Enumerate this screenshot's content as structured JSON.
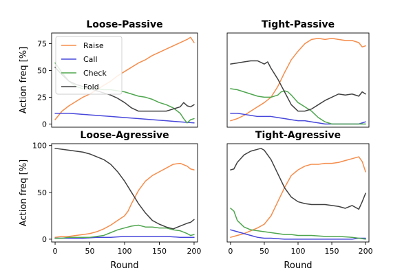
{
  "chart_data": [
    {
      "type": "line",
      "title": "Loose-Passive",
      "xlabel": "",
      "ylabel": "Action freq [%]",
      "xlim": [
        -5,
        205
      ],
      "ylim": [
        -3,
        85
      ],
      "xticks": [],
      "yticks": [
        0,
        25,
        50,
        75
      ],
      "grid": false,
      "legend": {
        "position": "top-left",
        "entries": [
          "Raise",
          "Call",
          "Check",
          "Fold"
        ]
      },
      "series": [
        {
          "name": "Raise",
          "color": "#F58D4C",
          "x": [
            0,
            10,
            20,
            30,
            40,
            50,
            60,
            70,
            80,
            90,
            100,
            110,
            120,
            130,
            140,
            150,
            160,
            170,
            180,
            190,
            195,
            200
          ],
          "y": [
            4,
            12,
            17,
            21,
            25,
            28,
            32,
            36,
            40,
            45,
            49,
            53,
            57,
            60,
            64,
            67,
            70,
            73,
            76,
            79,
            81,
            76
          ]
        },
        {
          "name": "Call",
          "color": "#4747DB",
          "x": [
            0,
            20,
            40,
            60,
            80,
            100,
            120,
            140,
            160,
            180,
            200
          ],
          "y": [
            10,
            10,
            9,
            8,
            7,
            6,
            5,
            4,
            3,
            2,
            1
          ]
        },
        {
          "name": "Check",
          "color": "#4FA64F",
          "x": [
            0,
            10,
            20,
            30,
            40,
            50,
            60,
            70,
            80,
            90,
            100,
            110,
            120,
            130,
            140,
            150,
            160,
            170,
            180,
            185,
            190,
            195,
            200
          ],
          "y": [
            57,
            48,
            40,
            35,
            33,
            33,
            33,
            32,
            32,
            31,
            30,
            28,
            26,
            25,
            23,
            20,
            18,
            15,
            10,
            5,
            1,
            4,
            5
          ]
        },
        {
          "name": "Fold",
          "color": "#404040",
          "x": [
            0,
            10,
            20,
            30,
            40,
            50,
            60,
            70,
            80,
            90,
            100,
            110,
            120,
            130,
            140,
            150,
            160,
            170,
            180,
            185,
            190,
            195,
            200
          ],
          "y": [
            53,
            46,
            40,
            37,
            35,
            33,
            31,
            29,
            27,
            24,
            20,
            15,
            12,
            12,
            12,
            12,
            12,
            14,
            16,
            20,
            17,
            16,
            18
          ]
        }
      ]
    },
    {
      "type": "line",
      "title": "Tight-Passive",
      "xlabel": "",
      "ylabel": "",
      "xlim": [
        -5,
        205
      ],
      "ylim": [
        -3,
        85
      ],
      "xticks": [],
      "yticks": [],
      "grid": false,
      "series": [
        {
          "name": "Raise",
          "color": "#F58D4C",
          "x": [
            0,
            10,
            20,
            30,
            40,
            50,
            60,
            70,
            80,
            90,
            100,
            110,
            120,
            130,
            140,
            150,
            160,
            170,
            180,
            190,
            195,
            200
          ],
          "y": [
            3,
            5,
            8,
            12,
            16,
            20,
            25,
            35,
            48,
            60,
            68,
            75,
            79,
            80,
            79,
            80,
            79,
            78,
            78,
            76,
            72,
            73
          ]
        },
        {
          "name": "Call",
          "color": "#4747DB",
          "x": [
            0,
            10,
            20,
            30,
            40,
            50,
            60,
            70,
            80,
            90,
            100,
            110,
            120,
            130,
            140,
            150,
            160,
            170,
            180,
            190,
            195,
            200
          ],
          "y": [
            10,
            10,
            9,
            8,
            7,
            7,
            7,
            6,
            5,
            4,
            3,
            3,
            2,
            1,
            0,
            0,
            0,
            0,
            0,
            0,
            1,
            2
          ]
        },
        {
          "name": "Check",
          "color": "#4FA64F",
          "x": [
            0,
            10,
            20,
            30,
            40,
            50,
            60,
            70,
            75,
            80,
            85,
            90,
            100,
            110,
            120,
            130,
            140,
            150,
            160,
            170,
            180,
            190,
            195,
            200
          ],
          "y": [
            33,
            32,
            30,
            28,
            26,
            25,
            25,
            27,
            30,
            31,
            30,
            27,
            20,
            16,
            12,
            6,
            2,
            0,
            0,
            0,
            0,
            0,
            0,
            0
          ]
        },
        {
          "name": "Fold",
          "color": "#404040",
          "x": [
            0,
            10,
            20,
            30,
            40,
            50,
            55,
            60,
            70,
            80,
            90,
            100,
            110,
            120,
            130,
            140,
            150,
            160,
            170,
            180,
            190,
            195,
            200
          ],
          "y": [
            56,
            57,
            58,
            59,
            59,
            56,
            58,
            52,
            42,
            30,
            18,
            12,
            12,
            14,
            18,
            22,
            25,
            28,
            27,
            28,
            26,
            30,
            28
          ]
        }
      ]
    },
    {
      "type": "line",
      "title": "Loose-Agressive",
      "xlabel": "Round",
      "ylabel": "Action freq [%]",
      "xlim": [
        -5,
        205
      ],
      "ylim": [
        -3,
        102
      ],
      "xticks": [
        0,
        50,
        100,
        150,
        200
      ],
      "yticks": [
        0,
        50,
        100
      ],
      "grid": false,
      "series": [
        {
          "name": "Raise",
          "color": "#F58D4C",
          "x": [
            0,
            10,
            20,
            30,
            40,
            50,
            60,
            70,
            80,
            90,
            100,
            105,
            110,
            120,
            130,
            140,
            150,
            160,
            170,
            180,
            190,
            195,
            200
          ],
          "y": [
            2,
            3,
            3,
            4,
            5,
            6,
            8,
            11,
            15,
            20,
            25,
            30,
            38,
            52,
            62,
            68,
            72,
            76,
            80,
            81,
            78,
            75,
            74
          ]
        },
        {
          "name": "Call",
          "color": "#4747DB",
          "x": [
            0,
            20,
            40,
            60,
            80,
            100,
            120,
            140,
            160,
            180,
            200
          ],
          "y": [
            1,
            1,
            1,
            2,
            2,
            3,
            3,
            3,
            3,
            2,
            2
          ]
        },
        {
          "name": "Check",
          "color": "#4FA64F",
          "x": [
            0,
            10,
            20,
            30,
            40,
            50,
            60,
            70,
            80,
            90,
            100,
            110,
            120,
            130,
            140,
            150,
            160,
            170,
            180,
            190,
            195,
            200
          ],
          "y": [
            1,
            1,
            2,
            2,
            2,
            2,
            3,
            4,
            7,
            10,
            12,
            14,
            15,
            13,
            13,
            12,
            12,
            10,
            9,
            6,
            4,
            5
          ]
        },
        {
          "name": "Fold",
          "color": "#404040",
          "x": [
            0,
            10,
            20,
            30,
            40,
            50,
            60,
            70,
            80,
            90,
            100,
            110,
            120,
            130,
            140,
            150,
            160,
            170,
            180,
            190,
            195,
            200
          ],
          "y": [
            97,
            96,
            95,
            94,
            93,
            91,
            88,
            85,
            80,
            72,
            62,
            50,
            38,
            28,
            20,
            16,
            13,
            11,
            14,
            17,
            18,
            21
          ]
        }
      ]
    },
    {
      "type": "line",
      "title": "Tight-Agressive",
      "xlabel": "Round",
      "ylabel": "",
      "xlim": [
        -5,
        205
      ],
      "ylim": [
        -3,
        102
      ],
      "xticks": [
        0,
        50,
        100,
        150,
        200
      ],
      "yticks": [],
      "grid": false,
      "series": [
        {
          "name": "Raise",
          "color": "#F58D4C",
          "x": [
            0,
            10,
            20,
            30,
            40,
            50,
            60,
            70,
            80,
            90,
            100,
            110,
            120,
            130,
            140,
            150,
            160,
            170,
            180,
            190,
            195,
            200
          ],
          "y": [
            2,
            4,
            6,
            9,
            12,
            16,
            25,
            40,
            55,
            68,
            74,
            78,
            80,
            80,
            81,
            81,
            82,
            84,
            86,
            88,
            83,
            72
          ]
        },
        {
          "name": "Call",
          "color": "#4747DB",
          "x": [
            0,
            5,
            10,
            20,
            30,
            40,
            50,
            60,
            80,
            100,
            120,
            140,
            160,
            180,
            190,
            200
          ],
          "y": [
            10,
            9,
            8,
            6,
            4,
            2,
            1,
            1,
            0,
            0,
            0,
            0,
            0,
            0,
            1,
            1
          ]
        },
        {
          "name": "Check",
          "color": "#4FA64F",
          "x": [
            0,
            5,
            10,
            20,
            30,
            40,
            50,
            60,
            70,
            80,
            90,
            100,
            120,
            140,
            160,
            180,
            190,
            200
          ],
          "y": [
            33,
            30,
            20,
            13,
            10,
            9,
            8,
            7,
            6,
            5,
            5,
            4,
            4,
            3,
            3,
            2,
            1,
            0
          ]
        },
        {
          "name": "Fold",
          "color": "#404040",
          "x": [
            0,
            5,
            10,
            20,
            30,
            40,
            45,
            50,
            60,
            70,
            80,
            90,
            100,
            110,
            120,
            130,
            140,
            150,
            160,
            170,
            180,
            190,
            195,
            200
          ],
          "y": [
            74,
            75,
            82,
            90,
            94,
            96,
            97,
            95,
            85,
            70,
            55,
            45,
            40,
            38,
            37,
            37,
            37,
            36,
            35,
            33,
            36,
            32,
            40,
            49
          ]
        }
      ]
    }
  ]
}
